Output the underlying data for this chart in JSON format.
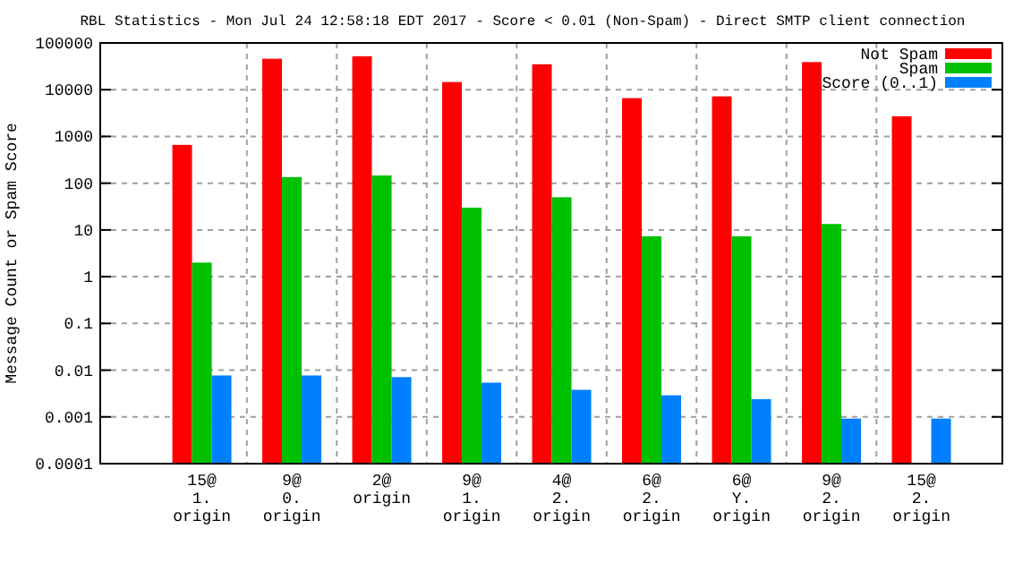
{
  "chart_data": {
    "type": "bar",
    "title": "RBL Statistics - Mon Jul 24 12:58:18 EDT 2017 - Score < 0.01 (Non-Spam) - Direct SMTP client connection",
    "ylabel": "Message Count or Spam Score",
    "categories": [
      "15@\n1.\norigin",
      "9@\n0.\norigin",
      "2@\norigin",
      "9@\n1.\norigin",
      "4@\n2.\norigin",
      "6@\n2.\norigin",
      "6@\nY.\norigin",
      "9@\n2.\norigin",
      "15@\n2.\norigin"
    ],
    "series": [
      {
        "name": "Not Spam",
        "color": "#ff0000",
        "values": [
          660,
          46000,
          52000,
          14600,
          35000,
          6600,
          7200,
          39000,
          2700
        ]
      },
      {
        "name": "Spam",
        "color": "#00c000",
        "values": [
          2,
          135,
          146,
          30,
          50,
          7.3,
          7.3,
          13.4,
          null
        ]
      },
      {
        "name": "Score (0..1)",
        "color": "#0080ff",
        "values": [
          0.0077,
          0.0077,
          0.0071,
          0.0054,
          0.0038,
          0.0029,
          0.0024,
          0.00092,
          0.00092
        ]
      }
    ],
    "log": true,
    "ylim": [
      0.0001,
      100000
    ],
    "yticks": [
      0.0001,
      0.001,
      0.01,
      0.1,
      1,
      10,
      100,
      1000,
      10000,
      100000
    ],
    "grid": true,
    "legend": "top right"
  }
}
